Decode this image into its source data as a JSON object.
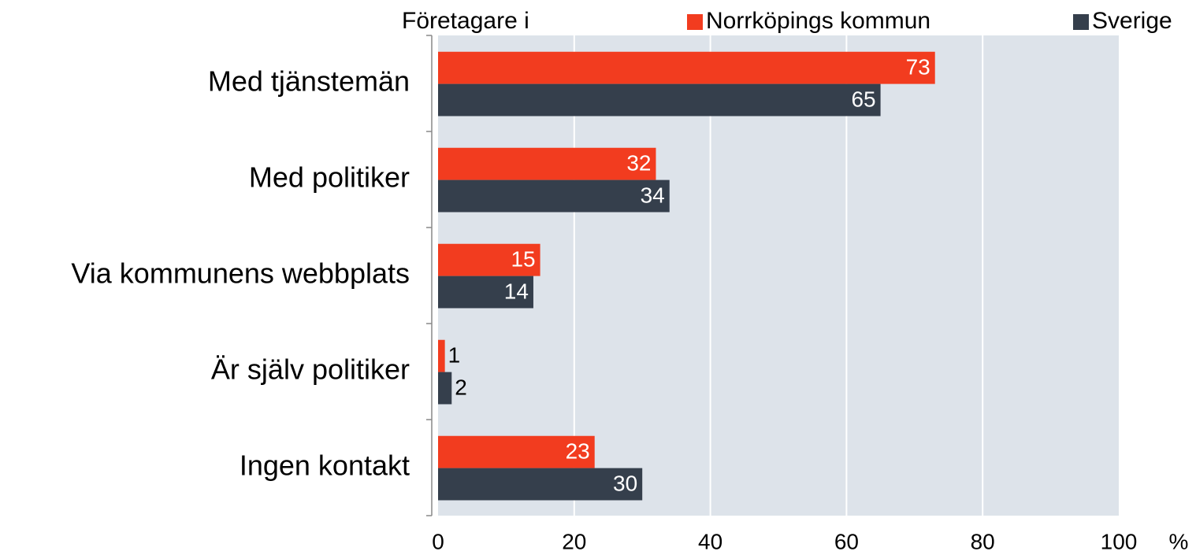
{
  "chart_data": {
    "type": "bar",
    "orientation": "horizontal",
    "legend_title": "Företagare i",
    "categories": [
      "Med tjänstemän",
      "Med politiker",
      "Via kommunens webbplats",
      "Är själv politiker",
      "Ingen kontakt"
    ],
    "series": [
      {
        "name": "Norrköpings kommun",
        "color": "#f23c1f",
        "values": [
          73,
          32,
          15,
          1,
          23
        ]
      },
      {
        "name": "Sverige",
        "color": "#353f4c",
        "values": [
          65,
          34,
          14,
          2,
          30
        ]
      }
    ],
    "xlim": [
      0,
      100
    ],
    "xticks": [
      0,
      20,
      40,
      60,
      80,
      100
    ],
    "xlabel": "%",
    "grid": true,
    "legend": "top"
  }
}
